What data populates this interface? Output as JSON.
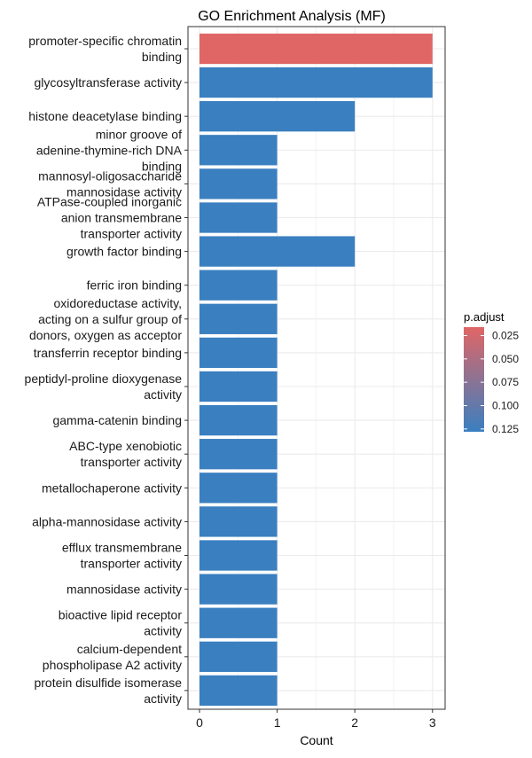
{
  "chart_data": {
    "type": "bar",
    "orientation": "horizontal",
    "title": "GO Enrichment Analysis (MF)",
    "xlabel": "Count",
    "ylabel": "",
    "xlim": [
      0,
      3
    ],
    "x_ticks": [
      0,
      1,
      2,
      3
    ],
    "grid": true,
    "categories": [
      "promoter-specific chromatin binding",
      "glycosyltransferase activity",
      "histone deacetylase binding",
      "minor groove of adenine-thymine-rich DNA binding",
      "mannosyl-oligosaccharide mannosidase activity",
      "ATPase-coupled inorganic anion transmembrane transporter activity",
      "growth factor binding",
      "ferric iron binding",
      "oxidoreductase activity, acting on a sulfur group of donors, oxygen as acceptor",
      "transferrin receptor binding",
      "peptidyl-proline dioxygenase activity",
      "gamma-catenin binding",
      "ABC-type xenobiotic transporter activity",
      "metallochaperone activity",
      "alpha-mannosidase activity",
      "efflux transmembrane transporter activity",
      "mannosidase activity",
      "bioactive lipid receptor activity",
      "calcium-dependent phospholipase A2 activity",
      "protein disulfide isomerase activity"
    ],
    "label_lines": [
      [
        "promoter-specific chromatin",
        "binding"
      ],
      [
        "glycosyltransferase activity"
      ],
      [
        "histone deacetylase binding"
      ],
      [
        "minor groove of",
        "adenine-thymine-rich DNA",
        "binding"
      ],
      [
        "mannosyl-oligosaccharide",
        "mannosidase activity"
      ],
      [
        "ATPase-coupled inorganic",
        "anion transmembrane",
        "transporter activity"
      ],
      [
        "growth factor binding"
      ],
      [
        "ferric iron binding"
      ],
      [
        "oxidoreductase activity,",
        "acting on a sulfur group of",
        "donors, oxygen as acceptor"
      ],
      [
        "transferrin receptor binding"
      ],
      [
        "peptidyl-proline dioxygenase",
        "activity"
      ],
      [
        "gamma-catenin binding"
      ],
      [
        "ABC-type xenobiotic",
        "transporter activity"
      ],
      [
        "metallochaperone activity"
      ],
      [
        "alpha-mannosidase activity"
      ],
      [
        "efflux transmembrane",
        "transporter activity"
      ],
      [
        "mannosidase activity"
      ],
      [
        "bioactive lipid receptor",
        "activity"
      ],
      [
        "calcium-dependent",
        "phospholipase A2 activity"
      ],
      [
        "protein disulfide isomerase",
        "activity"
      ]
    ],
    "values": [
      3,
      3,
      2,
      1,
      1,
      1,
      2,
      1,
      1,
      1,
      1,
      1,
      1,
      1,
      1,
      1,
      1,
      1,
      1,
      1
    ],
    "p_adjust": [
      0.016,
      0.128,
      0.128,
      0.128,
      0.128,
      0.128,
      0.128,
      0.128,
      0.128,
      0.128,
      0.128,
      0.128,
      0.128,
      0.128,
      0.128,
      0.128,
      0.128,
      0.128,
      0.128,
      0.128
    ],
    "legend": {
      "title": "p.adjust",
      "placement": "right",
      "ticks": [
        0.025,
        0.05,
        0.075,
        0.1,
        0.125
      ],
      "tick_labels": [
        "0.025",
        "0.050",
        "0.075",
        "0.100",
        "0.125"
      ],
      "range": [
        0.016,
        0.128
      ],
      "color_low": "#e06666",
      "color_high": "#3a7fc0"
    }
  }
}
